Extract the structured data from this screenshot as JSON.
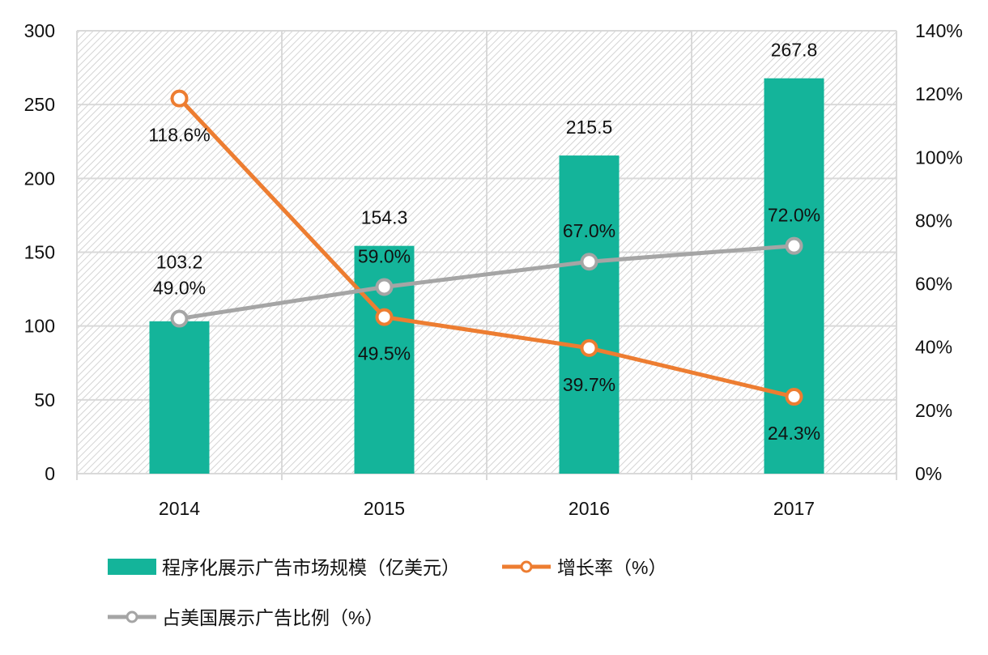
{
  "chart_data": {
    "type": "bar+line",
    "categories": [
      "2014",
      "2015",
      "2016",
      "2017"
    ],
    "series": [
      {
        "name": "程序化展示广告市场规模（亿美元）",
        "type": "bar",
        "axis": "left",
        "color": "#14b49a",
        "values": [
          103.2,
          154.3,
          215.5,
          267.8
        ],
        "labels": [
          "103.2",
          "154.3",
          "215.5",
          "267.8"
        ]
      },
      {
        "name": "增长率（%）",
        "type": "line",
        "axis": "right",
        "color": "#ed7d31",
        "values": [
          118.6,
          49.5,
          39.7,
          24.3
        ],
        "labels": [
          "118.6%",
          "49.5%",
          "39.7%",
          "24.3%"
        ]
      },
      {
        "name": "占美国展示广告比例（%）",
        "type": "line",
        "axis": "right",
        "color": "#a5a5a5",
        "values": [
          49.0,
          59.0,
          67.0,
          72.0
        ],
        "labels": [
          "49.0%",
          "59.0%",
          "67.0%",
          "72.0%"
        ]
      }
    ],
    "left_axis": {
      "min": 0,
      "max": 300,
      "step": 50,
      "ticks": [
        "0",
        "50",
        "100",
        "150",
        "200",
        "250",
        "300"
      ]
    },
    "right_axis": {
      "min": 0,
      "max": 140,
      "step": 20,
      "ticks": [
        "0%",
        "20%",
        "40%",
        "60%",
        "80%",
        "100%",
        "120%",
        "140%"
      ]
    },
    "grid": true,
    "legend_position": "bottom"
  }
}
